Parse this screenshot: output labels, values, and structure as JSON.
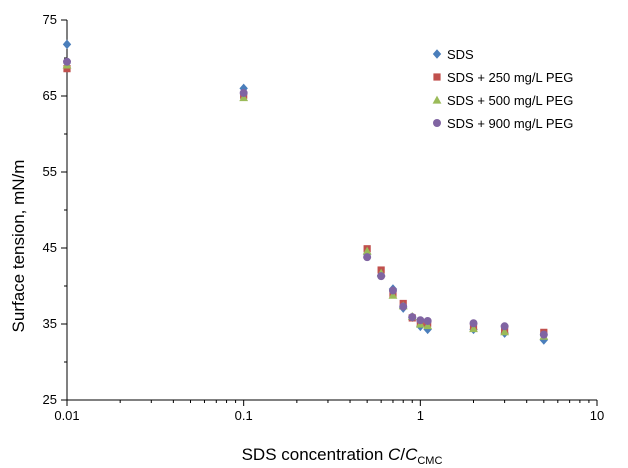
{
  "chart_data": {
    "type": "scatter",
    "xlabel": {
      "prefix": "SDS concentration ",
      "var": "C",
      "slash": "/",
      "var2": "C",
      "sub": "CMC"
    },
    "ylabel": "Surface tension, mN/m",
    "xscale": "log",
    "xlim": [
      0.01,
      10
    ],
    "ylim": [
      25,
      75
    ],
    "xticks": [
      0.01,
      0.1,
      1,
      10
    ],
    "xtick_labels": [
      "0.01",
      "0.1",
      "1",
      "10"
    ],
    "yticks": [
      25,
      35,
      45,
      55,
      65,
      75
    ],
    "ytick_labels": [
      "25",
      "35",
      "45",
      "55",
      "65",
      "75"
    ],
    "grid": false,
    "legend_position": "top-right",
    "series": [
      {
        "name": "SDS",
        "marker": "diamond",
        "color": "#4a7ebb",
        "x": [
          0.01,
          0.1,
          0.5,
          0.6,
          0.7,
          0.8,
          0.9,
          1.0,
          1.1,
          2.0,
          3.0,
          5.0
        ],
        "y": [
          71.8,
          66.0,
          44.2,
          41.4,
          39.6,
          37.1,
          35.9,
          34.7,
          34.3,
          34.3,
          33.8,
          32.9
        ]
      },
      {
        "name": "SDS + 250 mg/L PEG",
        "marker": "square",
        "color": "#c0504d",
        "x": [
          0.01,
          0.1,
          0.5,
          0.6,
          0.7,
          0.8,
          0.9,
          1.0,
          1.1,
          2.0,
          3.0,
          5.0
        ],
        "y": [
          68.6,
          65.1,
          44.9,
          42.1,
          38.9,
          37.7,
          35.8,
          35.2,
          35.1,
          34.6,
          34.1,
          33.9
        ]
      },
      {
        "name": "SDS + 500 mg/L PEG",
        "marker": "triangle",
        "color": "#9bbb59",
        "x": [
          0.01,
          0.1,
          0.5,
          0.6,
          0.7,
          0.8,
          0.9,
          1.0,
          1.1,
          2.0,
          3.0,
          5.0
        ],
        "y": [
          69.1,
          64.8,
          44.6,
          41.7,
          38.8,
          37.4,
          36.0,
          35.0,
          34.8,
          34.4,
          34.0,
          33.4
        ]
      },
      {
        "name": "SDS + 900 mg/L PEG",
        "marker": "circle",
        "color": "#8064a2",
        "x": [
          0.01,
          0.1,
          0.5,
          0.6,
          0.7,
          0.8,
          0.9,
          1.0,
          1.1,
          2.0,
          3.0,
          5.0
        ],
        "y": [
          69.5,
          65.4,
          43.8,
          41.3,
          39.4,
          37.3,
          35.9,
          35.5,
          35.4,
          35.1,
          34.7,
          33.6
        ]
      }
    ]
  }
}
